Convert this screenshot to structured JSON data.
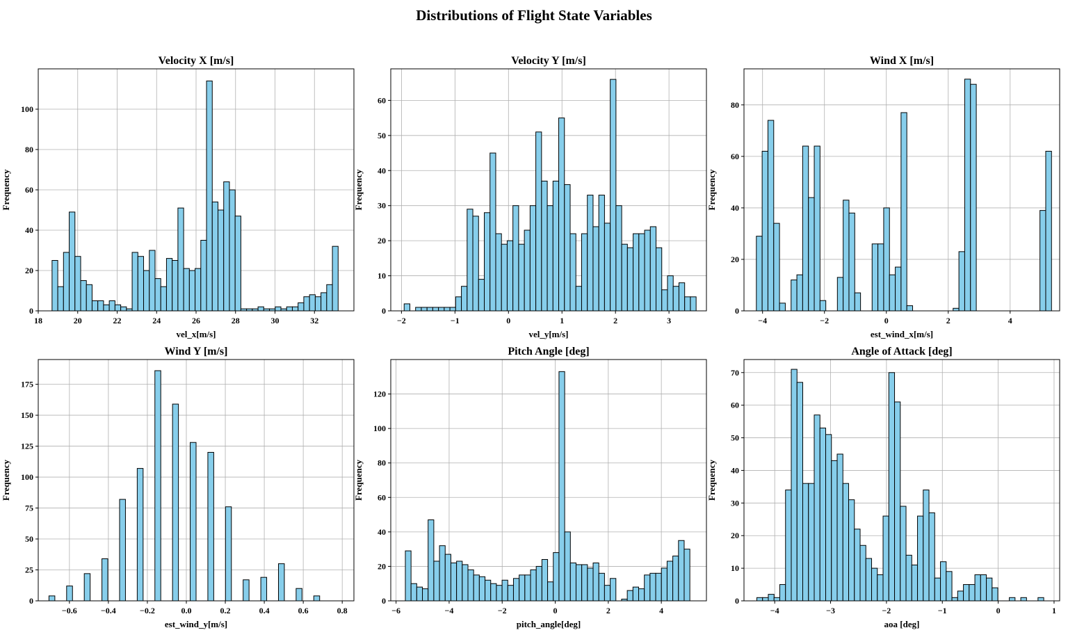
{
  "figure": {
    "title": "Distributions of Flight State Variables"
  },
  "style": {
    "bar_color": "#87ceeb",
    "edge_color": "#000000",
    "grid_color": "#b0b0b0"
  },
  "chart_data": [
    {
      "type": "bar",
      "title": "Velocity X [m/s]",
      "xlabel": "vel_x[m/s]",
      "ylabel": "Frequency",
      "xlim": [
        18,
        34
      ],
      "ylim": [
        0,
        120
      ],
      "grid": true,
      "xticks": [
        18,
        20,
        22,
        24,
        26,
        28,
        30,
        32
      ],
      "yticks": [
        0,
        20,
        40,
        60,
        80,
        100
      ],
      "bin_start": 18.7,
      "bin_width": 0.29,
      "values": [
        25,
        12,
        29,
        49,
        27,
        15,
        13,
        5,
        5,
        3,
        5,
        3,
        2,
        1,
        29,
        27,
        20,
        30,
        16,
        12,
        26,
        25,
        51,
        21,
        20,
        21,
        35,
        114,
        54,
        50,
        64,
        60,
        47,
        1,
        1,
        1,
        2,
        1,
        1,
        2,
        1,
        2,
        2,
        4,
        7,
        8,
        7,
        9,
        13,
        32
      ]
    },
    {
      "type": "bar",
      "title": "Velocity Y [m/s]",
      "xlabel": "vel_y[m/s]",
      "ylabel": "Frequency",
      "xlim": [
        -2.2,
        3.7
      ],
      "ylim": [
        0,
        69
      ],
      "grid": true,
      "xticks": [
        -2,
        -1,
        0,
        1,
        2,
        3
      ],
      "yticks": [
        0,
        10,
        20,
        30,
        40,
        50,
        60
      ],
      "bin_start": -1.95,
      "bin_width": 0.107,
      "values": [
        2,
        0,
        1,
        1,
        1,
        1,
        1,
        1,
        1,
        4,
        7,
        29,
        27,
        9,
        28,
        45,
        22,
        19,
        20,
        30,
        19,
        23,
        30,
        51,
        37,
        30,
        37,
        55,
        36,
        22,
        7,
        22,
        33,
        24,
        33,
        25,
        66,
        30,
        19,
        18,
        22,
        22,
        23,
        24,
        18,
        6,
        10,
        7,
        8,
        4,
        4
      ]
    },
    {
      "type": "bar",
      "title": "Wind X [m/s]",
      "xlabel": "est_wind_x[m/s]",
      "ylabel": "Frequency",
      "xlim": [
        -4.6,
        5.6
      ],
      "ylim": [
        0,
        94
      ],
      "grid": true,
      "xticks": [
        -4,
        -2,
        0,
        2,
        4
      ],
      "yticks": [
        0,
        20,
        40,
        60,
        80
      ],
      "bin_start": -4.2,
      "bin_width": 0.187,
      "values": [
        29,
        62,
        74,
        34,
        3,
        0,
        12,
        14,
        64,
        44,
        64,
        4,
        0,
        0,
        13,
        43,
        38,
        7,
        0,
        0,
        26,
        26,
        40,
        14,
        17,
        77,
        2,
        0,
        0,
        0,
        0,
        0,
        0,
        0,
        1,
        23,
        90,
        88,
        0,
        0,
        0,
        0,
        0,
        0,
        0,
        0,
        0,
        0,
        0,
        39,
        62
      ]
    },
    {
      "type": "bar",
      "title": "Wind Y [m/s]",
      "xlabel": "est_wind_y[m/s]",
      "ylabel": "Frequency",
      "xlim": [
        -0.76,
        0.86
      ],
      "ylim": [
        0,
        195
      ],
      "grid": true,
      "xticks": [
        -0.6,
        -0.4,
        -0.2,
        0.0,
        0.2,
        0.4,
        0.6,
        0.8
      ],
      "yticks": [
        0,
        25,
        50,
        75,
        100,
        125,
        150,
        175
      ],
      "bin_start": -0.705,
      "bin_width": 0.0302,
      "values": [
        4,
        0,
        0,
        12,
        0,
        0,
        22,
        0,
        0,
        34,
        0,
        0,
        82,
        0,
        0,
        107,
        0,
        0,
        186,
        0,
        0,
        159,
        0,
        0,
        128,
        0,
        0,
        120,
        0,
        0,
        76,
        0,
        0,
        17,
        0,
        0,
        19,
        0,
        0,
        30,
        0,
        0,
        10,
        0,
        0,
        4
      ]
    },
    {
      "type": "bar",
      "title": "Pitch Angle [deg]",
      "xlabel": "pitch_angle[deg]",
      "ylabel": "Frequency",
      "xlim": [
        -6.2,
        5.7
      ],
      "ylim": [
        0,
        140
      ],
      "grid": true,
      "xticks": [
        -6,
        -4,
        -2,
        0,
        2,
        4
      ],
      "yticks": [
        0,
        20,
        40,
        60,
        80,
        100,
        120
      ],
      "bin_start": -5.65,
      "bin_width": 0.2145,
      "values": [
        29,
        10,
        8,
        7,
        47,
        23,
        32,
        27,
        22,
        23,
        21,
        18,
        15,
        14,
        12,
        10,
        9,
        12,
        9,
        13,
        15,
        15,
        18,
        20,
        24,
        11,
        28,
        133,
        40,
        22,
        21,
        21,
        19,
        22,
        16,
        9,
        13,
        0,
        1,
        6,
        8,
        7,
        15,
        16,
        16,
        19,
        23,
        26,
        35,
        30
      ]
    },
    {
      "type": "bar",
      "title": "Angle of Attack [deg]",
      "xlabel": "aoa [deg]",
      "ylabel": "Frequency",
      "xlim": [
        -4.55,
        1.1
      ],
      "ylim": [
        0,
        74
      ],
      "grid": true,
      "xticks": [
        -4,
        -3,
        -2,
        -1,
        0,
        1
      ],
      "yticks": [
        0,
        10,
        20,
        30,
        40,
        50,
        60,
        70
      ],
      "bin_start": -4.32,
      "bin_width": 0.1027,
      "values": [
        1,
        1,
        2,
        1,
        5,
        34,
        71,
        67,
        36,
        36,
        57,
        53,
        51,
        43,
        45,
        36,
        31,
        22,
        17,
        13,
        10,
        8,
        26,
        70,
        61,
        29,
        14,
        11,
        26,
        34,
        27,
        7,
        12,
        9,
        1,
        3,
        5,
        5,
        8,
        8,
        7,
        4,
        0,
        0,
        1,
        0,
        1,
        0,
        0,
        1
      ]
    }
  ]
}
